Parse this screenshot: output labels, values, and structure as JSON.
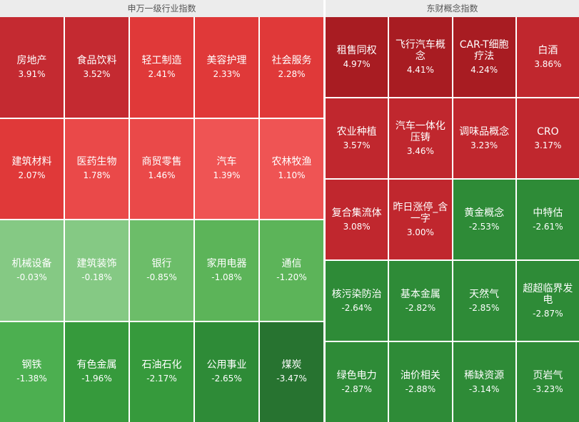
{
  "chart_data": [
    {
      "type": "heatmap",
      "title": "申万一级行业指数",
      "cells": [
        {
          "name": "房地产",
          "value": 3.91,
          "label": "3.91%",
          "color": "#c42a31"
        },
        {
          "name": "食品饮料",
          "value": 3.52,
          "label": "3.52%",
          "color": "#c42a31"
        },
        {
          "name": "轻工制造",
          "value": 2.41,
          "label": "2.41%",
          "color": "#e03939"
        },
        {
          "name": "美容护理",
          "value": 2.33,
          "label": "2.33%",
          "color": "#e03939"
        },
        {
          "name": "社会服务",
          "value": 2.28,
          "label": "2.28%",
          "color": "#e03939"
        },
        {
          "name": "建筑材料",
          "value": 2.07,
          "label": "2.07%",
          "color": "#e03939"
        },
        {
          "name": "医药生物",
          "value": 1.78,
          "label": "1.78%",
          "color": "#ea4949"
        },
        {
          "name": "商贸零售",
          "value": 1.46,
          "label": "1.46%",
          "color": "#ea4949"
        },
        {
          "name": "汽车",
          "value": 1.39,
          "label": "1.39%",
          "color": "#ef5454"
        },
        {
          "name": "农林牧渔",
          "value": 1.1,
          "label": "1.10%",
          "color": "#ef5454"
        },
        {
          "name": "机械设备",
          "value": -0.03,
          "label": "-0.03%",
          "color": "#85c984"
        },
        {
          "name": "建筑装饰",
          "value": -0.18,
          "label": "-0.18%",
          "color": "#85c984"
        },
        {
          "name": "银行",
          "value": -0.85,
          "label": "-0.85%",
          "color": "#6cbd69"
        },
        {
          "name": "家用电器",
          "value": -1.08,
          "label": "-1.08%",
          "color": "#5cb459"
        },
        {
          "name": "通信",
          "value": -1.2,
          "label": "-1.20%",
          "color": "#5cb459"
        },
        {
          "name": "钢铁",
          "value": -1.38,
          "label": "-1.38%",
          "color": "#4caf50"
        },
        {
          "name": "有色金属",
          "value": -1.96,
          "label": "-1.96%",
          "color": "#369a3c"
        },
        {
          "name": "石油石化",
          "value": -2.17,
          "label": "-2.17%",
          "color": "#369a3c"
        },
        {
          "name": "公用事业",
          "value": -2.65,
          "label": "-2.65%",
          "color": "#2e8b37"
        },
        {
          "name": "煤炭",
          "value": -3.47,
          "label": "-3.47%",
          "color": "#277330"
        }
      ]
    },
    {
      "type": "heatmap",
      "title": "东财概念指数",
      "cells": [
        {
          "name": "租售同权",
          "value": 4.97,
          "label": "4.97%",
          "color": "#a81c22"
        },
        {
          "name": "飞行汽车概念",
          "value": 4.41,
          "label": "4.41%",
          "color": "#a81c22"
        },
        {
          "name": "CAR-T细胞疗法",
          "value": 4.24,
          "label": "4.24%",
          "color": "#a81c22"
        },
        {
          "name": "白酒",
          "value": 3.86,
          "label": "3.86%",
          "color": "#c0272e"
        },
        {
          "name": "农业种植",
          "value": 3.57,
          "label": "3.57%",
          "color": "#c0272e"
        },
        {
          "name": "汽车一体化压铸",
          "value": 3.46,
          "label": "3.46%",
          "color": "#c0272e"
        },
        {
          "name": "调味品概念",
          "value": 3.23,
          "label": "3.23%",
          "color": "#c0272e"
        },
        {
          "name": "CRO",
          "value": 3.17,
          "label": "3.17%",
          "color": "#c0272e"
        },
        {
          "name": "复合集流体",
          "value": 3.08,
          "label": "3.08%",
          "color": "#c0272e"
        },
        {
          "name": "昨日涨停_含一字",
          "value": 3.0,
          "label": "3.00%",
          "color": "#c0272e"
        },
        {
          "name": "黄金概念",
          "value": -2.53,
          "label": "-2.53%",
          "color": "#2e8b37"
        },
        {
          "name": "中特估",
          "value": -2.61,
          "label": "-2.61%",
          "color": "#2e8b37"
        },
        {
          "name": "核污染防治",
          "value": -2.64,
          "label": "-2.64%",
          "color": "#2e8b37"
        },
        {
          "name": "基本金属",
          "value": -2.82,
          "label": "-2.82%",
          "color": "#2e8b37"
        },
        {
          "name": "天然气",
          "value": -2.85,
          "label": "-2.85%",
          "color": "#2e8b37"
        },
        {
          "name": "超超临界发电",
          "value": -2.87,
          "label": "-2.87%",
          "color": "#2e8b37"
        },
        {
          "name": "绿色电力",
          "value": -2.87,
          "label": "-2.87%",
          "color": "#2e8b37"
        },
        {
          "name": "油价相关",
          "value": -2.88,
          "label": "-2.88%",
          "color": "#2e8b37"
        },
        {
          "name": "稀缺资源",
          "value": -3.14,
          "label": "-3.14%",
          "color": "#2e8b37"
        },
        {
          "name": "页岩气",
          "value": -3.23,
          "label": "-3.23%",
          "color": "#2e8b37"
        }
      ]
    }
  ]
}
